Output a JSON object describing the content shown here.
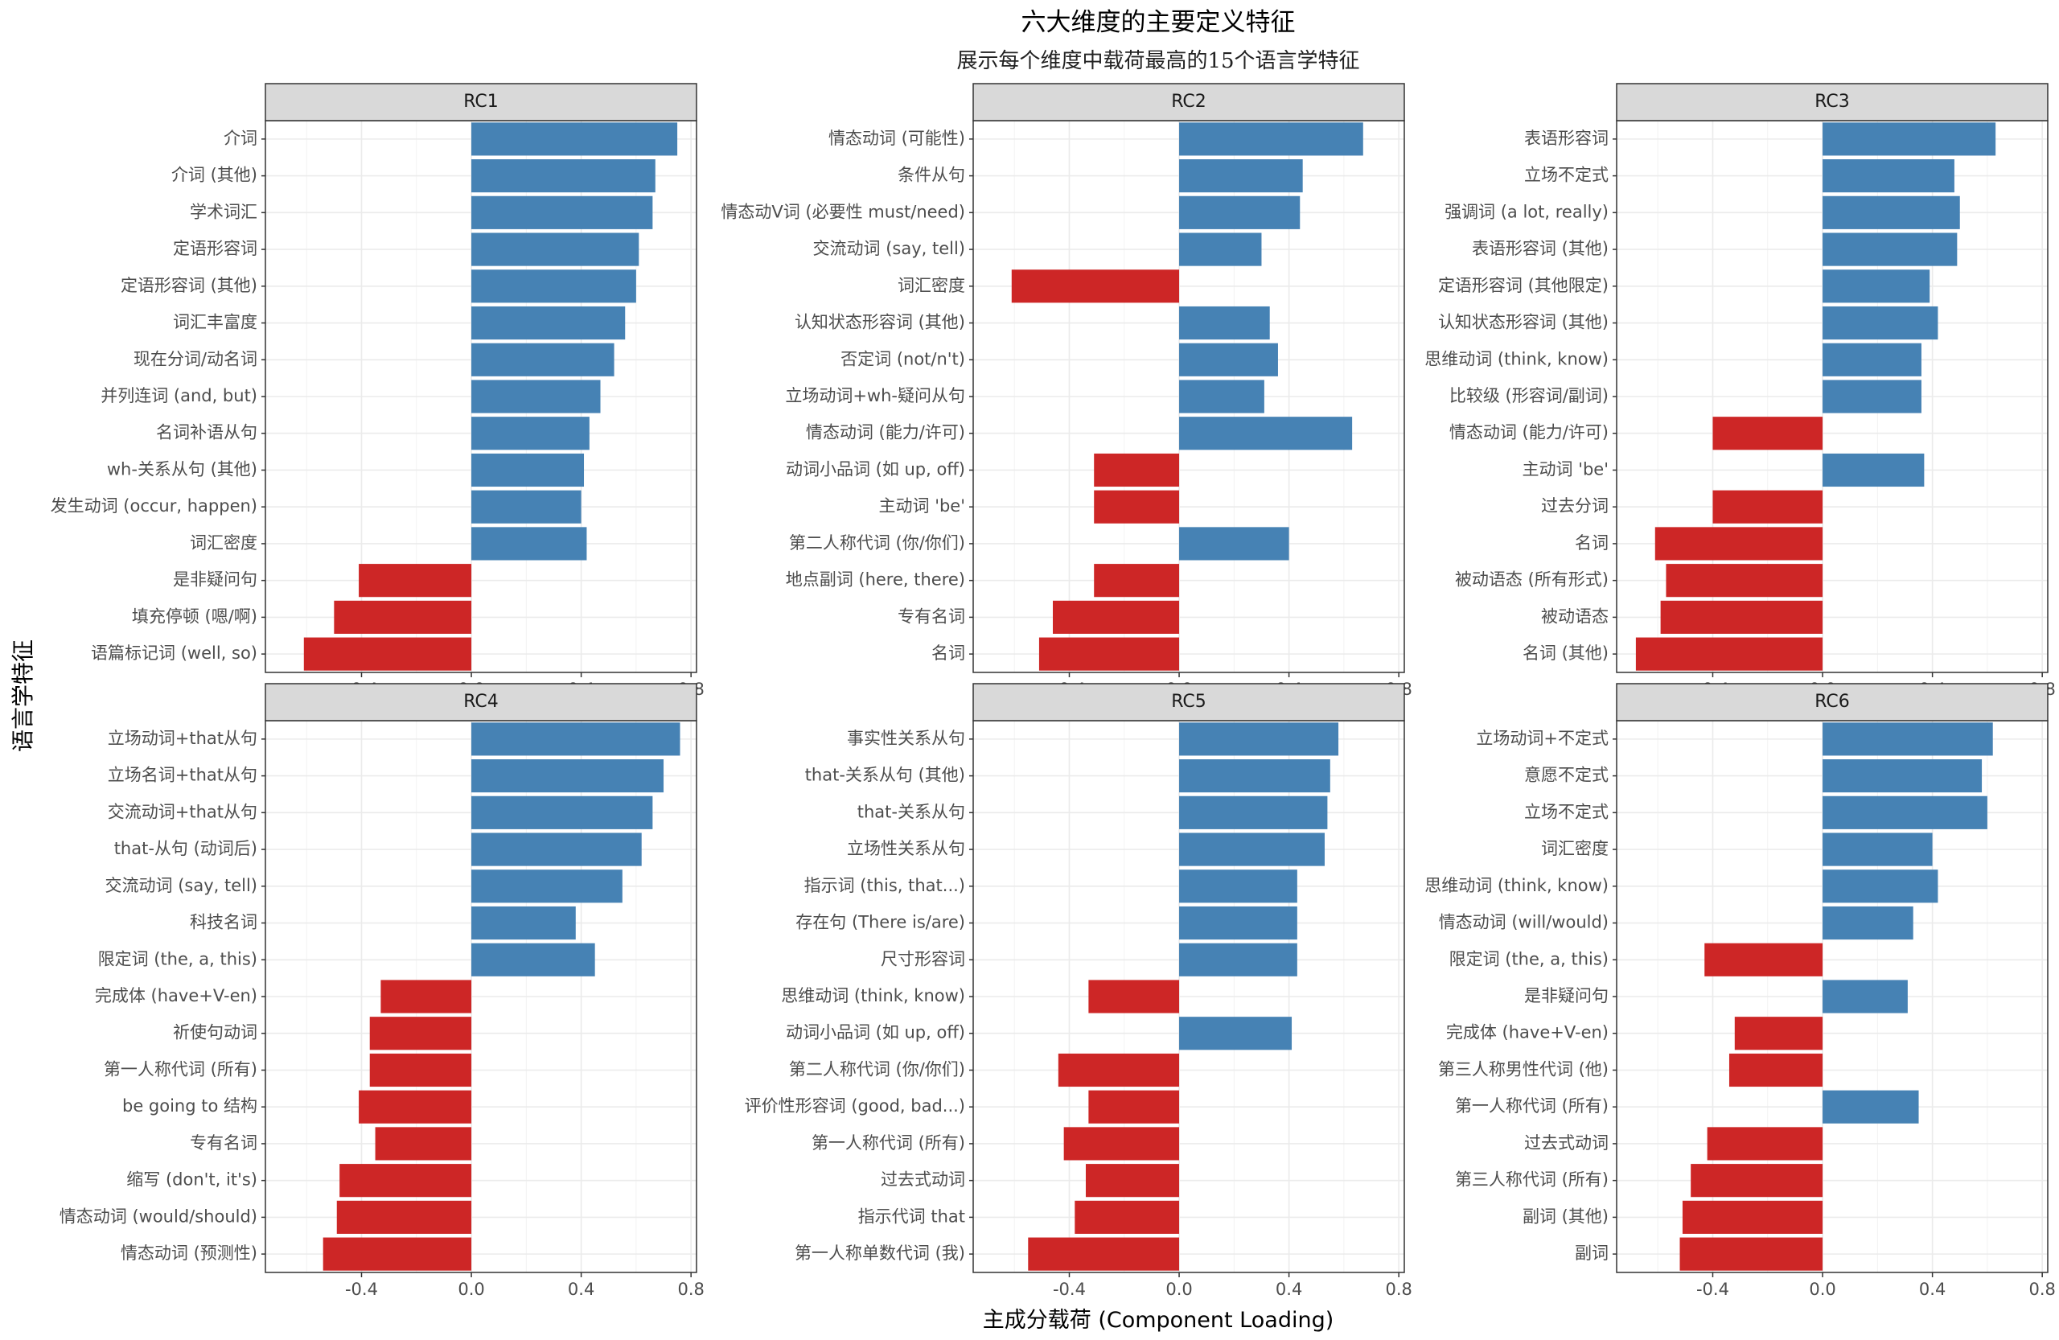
{
  "chart_data": {
    "type": "bar",
    "title": "六大维度的主要定义特征",
    "subtitle": "展示每个维度中载荷最高的15个语言学特征",
    "xlabel": "主成分载荷 (Component Loading)",
    "ylabel": "语言学特征",
    "xlim": [
      -0.75,
      0.82
    ],
    "xticks": [
      "-0.4",
      "0.0",
      "0.4",
      "0.8"
    ],
    "grid": true,
    "colors": {
      "positive": "#4682B4",
      "negative": "#CD2626",
      "strip": "#D9D9D9",
      "grid": "#EBEBEB"
    },
    "panels": [
      {
        "name": "RC1",
        "categories": [
          "介词",
          "介词 (其他)",
          "学术词汇",
          "定语形容词",
          "定语形容词 (其他)",
          "词汇丰富度",
          "现在分词/动名词",
          "并列连词 (and, but)",
          "名词补语从句",
          "wh-关系从句 (其他)",
          "发生动词 (occur, happen)",
          "词汇密度",
          "是非疑问句",
          "填充停顿 (嗯/啊)",
          "语篇标记词 (well, so)"
        ],
        "values": [
          0.75,
          0.67,
          0.66,
          0.61,
          0.6,
          0.56,
          0.52,
          0.47,
          0.43,
          0.41,
          0.4,
          0.42,
          -0.41,
          -0.5,
          -0.61
        ]
      },
      {
        "name": "RC2",
        "categories": [
          "情态动词 (可能性)",
          "条件从句",
          "情态动V词 (必要性 must/need)",
          "交流动词 (say, tell)",
          "词汇密度",
          "认知状态形容词 (其他)",
          "否定词 (not/n't)",
          "立场动词+wh-疑问从句",
          "情态动词 (能力/许可)",
          "动词小品词 (如 up, off)",
          "主动词 'be'",
          "第二人称代词 (你/你们)",
          "地点副词 (here, there)",
          "专有名词",
          "名词"
        ],
        "values": [
          0.67,
          0.45,
          0.44,
          0.3,
          -0.61,
          0.33,
          0.36,
          0.31,
          0.63,
          -0.31,
          -0.31,
          0.4,
          -0.31,
          -0.46,
          -0.51
        ]
      },
      {
        "name": "RC3",
        "categories": [
          "表语形容词",
          "立场不定式",
          "强调词 (a lot, really)",
          "表语形容词 (其他)",
          "定语形容词 (其他限定)",
          "认知状态形容词 (其他)",
          "思维动词 (think, know)",
          "比较级 (形容词/副词)",
          "情态动词 (能力/许可)",
          "主动词 'be'",
          "过去分词",
          "名词",
          "被动语态 (所有形式)",
          "被动语态",
          "名词 (其他)"
        ],
        "values": [
          0.63,
          0.48,
          0.5,
          0.49,
          0.39,
          0.42,
          0.36,
          0.36,
          -0.4,
          0.37,
          -0.4,
          -0.61,
          -0.57,
          -0.59,
          -0.68
        ]
      },
      {
        "name": "RC4",
        "categories": [
          "立场动词+that从句",
          "立场名词+that从句",
          "交流动词+that从句",
          "that-从句 (动词后)",
          "交流动词 (say, tell)",
          "科技名词",
          "限定词 (the, a, this)",
          "完成体 (have+V-en)",
          "祈使句动词",
          "第一人称代词 (所有)",
          "be going to 结构",
          "专有名词",
          "缩写 (don't, it's)",
          "情态动词 (would/should)",
          "情态动词 (预测性)"
        ],
        "values": [
          0.76,
          0.7,
          0.66,
          0.62,
          0.55,
          0.38,
          0.45,
          -0.33,
          -0.37,
          -0.37,
          -0.41,
          -0.35,
          -0.48,
          -0.49,
          -0.54
        ]
      },
      {
        "name": "RC5",
        "categories": [
          "事实性关系从句",
          "that-关系从句 (其他)",
          "that-关系从句",
          "立场性关系从句",
          "指示词 (this, that...)",
          "存在句 (There is/are)",
          "尺寸形容词",
          "思维动词 (think, know)",
          "动词小品词 (如 up, off)",
          "第二人称代词 (你/你们)",
          "评价性形容词 (good, bad...)",
          "第一人称代词 (所有)",
          "过去式动词",
          "指示代词 that",
          "第一人称单数代词 (我)"
        ],
        "values": [
          0.58,
          0.55,
          0.54,
          0.53,
          0.43,
          0.43,
          0.43,
          -0.33,
          0.41,
          -0.44,
          -0.33,
          -0.42,
          -0.34,
          -0.38,
          -0.55
        ]
      },
      {
        "name": "RC6",
        "categories": [
          "立场动词+不定式",
          "意愿不定式",
          "立场不定式",
          "词汇密度",
          "思维动词 (think, know)",
          "情态动词 (will/would)",
          "限定词 (the, a, this)",
          "是非疑问句",
          "完成体 (have+V-en)",
          "第三人称男性代词 (他)",
          "第一人称代词 (所有)",
          "过去式动词",
          "第三人称代词 (所有)",
          "副词 (其他)",
          "副词"
        ],
        "values": [
          0.62,
          0.58,
          0.6,
          0.4,
          0.42,
          0.33,
          -0.43,
          0.31,
          -0.32,
          -0.34,
          0.35,
          -0.42,
          -0.48,
          -0.51,
          -0.52
        ]
      }
    ]
  }
}
